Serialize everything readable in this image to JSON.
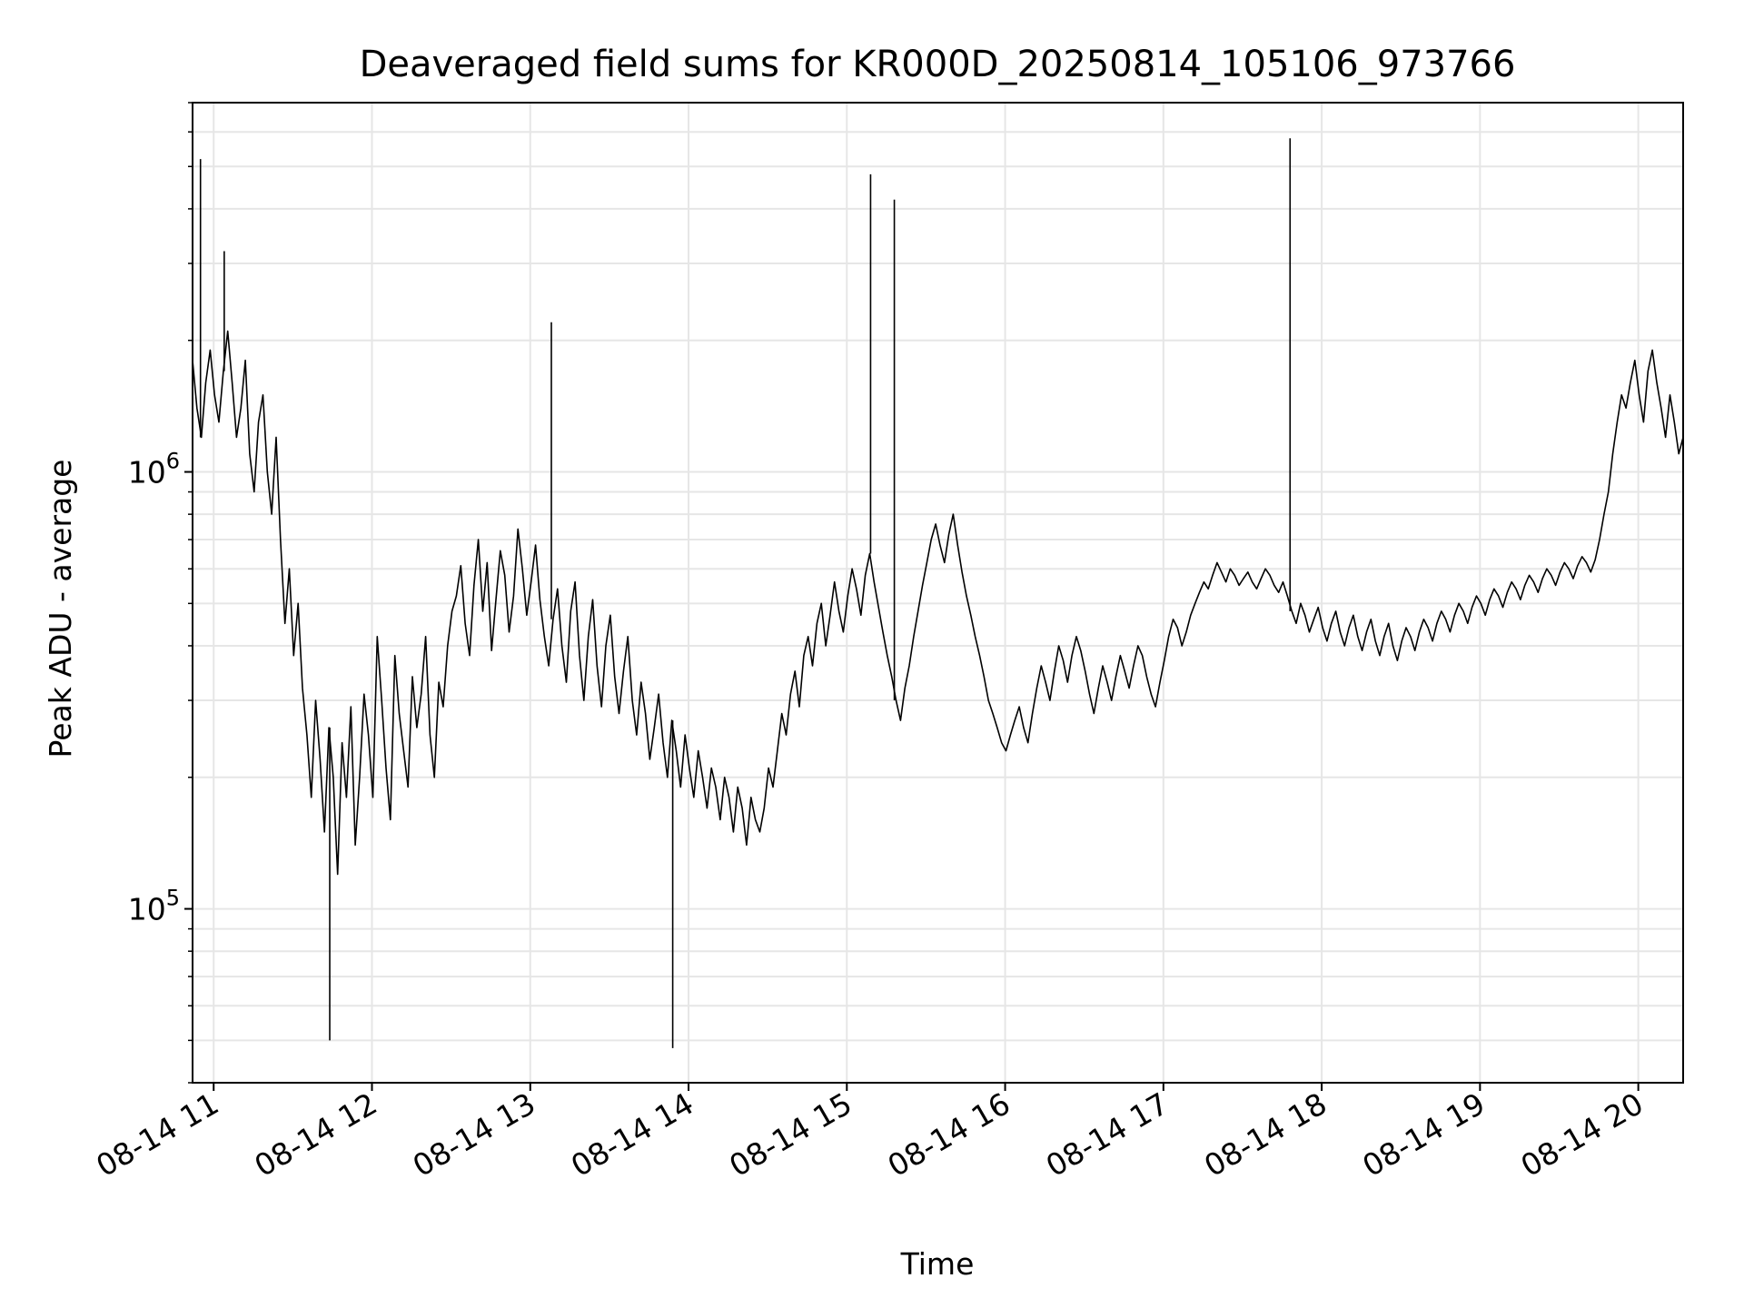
{
  "chart_data": {
    "type": "line",
    "title": "Deaveraged field sums for KR000D_20250814_105106_973766",
    "xlabel": "Time",
    "ylabel": "Peak ADU - average",
    "y_scale": "log",
    "grid": true,
    "line_color": "#000000",
    "grid_color": "#e6e6e6",
    "x_start": "08-14 10:52",
    "x_end": "08-14 20:17",
    "x_ticks": [
      "08-14 11",
      "08-14 12",
      "08-14 13",
      "08-14 14",
      "08-14 15",
      "08-14 16",
      "08-14 17",
      "08-14 18",
      "08-14 19",
      "08-14 20"
    ],
    "y_ticks": [
      {
        "base": "10",
        "exp": "5",
        "value": 100000
      },
      {
        "base": "10",
        "exp": "6",
        "value": 1000000
      }
    ],
    "ylim": [
      40000,
      7000000
    ],
    "series": [
      {
        "values": [
          1800000,
          1400000,
          1200000,
          1600000,
          1900000,
          1500000,
          1300000,
          1700000,
          2100000,
          1600000,
          1200000,
          1400000,
          1800000,
          1100000,
          900000,
          1300000,
          1500000,
          1000000,
          800000,
          1200000,
          700000,
          450000,
          600000,
          380000,
          500000,
          320000,
          250000,
          180000,
          300000,
          220000,
          150000,
          260000,
          200000,
          120000,
          240000,
          180000,
          290000,
          140000,
          200000,
          310000,
          250000,
          180000,
          420000,
          300000,
          210000,
          160000,
          380000,
          280000,
          230000,
          190000,
          340000,
          260000,
          310000,
          420000,
          250000,
          200000,
          330000,
          290000,
          400000,
          480000,
          520000,
          610000,
          450000,
          380000,
          550000,
          700000,
          480000,
          620000,
          390000,
          510000,
          660000,
          580000,
          430000,
          520000,
          740000,
          600000,
          470000,
          560000,
          680000,
          510000,
          420000,
          360000,
          460000,
          540000,
          400000,
          330000,
          480000,
          560000,
          380000,
          300000,
          420000,
          510000,
          360000,
          290000,
          400000,
          470000,
          340000,
          280000,
          350000,
          420000,
          300000,
          250000,
          330000,
          280000,
          220000,
          260000,
          310000,
          240000,
          200000,
          270000,
          230000,
          190000,
          250000,
          210000,
          180000,
          230000,
          200000,
          170000,
          210000,
          190000,
          160000,
          200000,
          180000,
          150000,
          190000,
          170000,
          140000,
          180000,
          160000,
          150000,
          170000,
          210000,
          190000,
          230000,
          280000,
          250000,
          310000,
          350000,
          290000,
          380000,
          420000,
          360000,
          450000,
          500000,
          400000,
          470000,
          560000,
          480000,
          430000,
          520000,
          600000,
          540000,
          470000,
          580000,
          650000,
          560000,
          490000,
          430000,
          380000,
          340000,
          300000,
          270000,
          320000,
          360000,
          420000,
          480000,
          550000,
          620000,
          700000,
          760000,
          680000,
          620000,
          720000,
          800000,
          680000,
          590000,
          520000,
          470000,
          420000,
          380000,
          340000,
          300000,
          280000,
          260000,
          240000,
          230000,
          250000,
          270000,
          290000,
          260000,
          240000,
          280000,
          320000,
          360000,
          330000,
          300000,
          350000,
          400000,
          370000,
          330000,
          380000,
          420000,
          390000,
          350000,
          310000,
          280000,
          320000,
          360000,
          330000,
          300000,
          340000,
          380000,
          350000,
          320000,
          360000,
          400000,
          380000,
          340000,
          310000,
          290000,
          330000,
          370000,
          420000,
          460000,
          440000,
          400000,
          430000,
          470000,
          500000,
          530000,
          560000,
          540000,
          580000,
          620000,
          590000,
          560000,
          600000,
          580000,
          550000,
          570000,
          590000,
          560000,
          540000,
          570000,
          600000,
          580000,
          550000,
          530000,
          560000,
          520000,
          480000,
          450000,
          500000,
          470000,
          430000,
          460000,
          490000,
          440000,
          410000,
          450000,
          480000,
          430000,
          400000,
          440000,
          470000,
          420000,
          390000,
          430000,
          460000,
          410000,
          380000,
          420000,
          450000,
          400000,
          370000,
          410000,
          440000,
          420000,
          390000,
          430000,
          460000,
          440000,
          410000,
          450000,
          480000,
          460000,
          430000,
          470000,
          500000,
          480000,
          450000,
          490000,
          520000,
          500000,
          470000,
          510000,
          540000,
          520000,
          490000,
          530000,
          560000,
          540000,
          510000,
          550000,
          580000,
          560000,
          530000,
          570000,
          600000,
          580000,
          550000,
          590000,
          620000,
          600000,
          570000,
          610000,
          640000,
          620000,
          590000,
          630000,
          700000,
          800000,
          900000,
          1100000,
          1300000,
          1500000,
          1400000,
          1600000,
          1800000,
          1500000,
          1300000,
          1700000,
          1900000,
          1600000,
          1400000,
          1200000,
          1500000,
          1300000,
          1100000,
          1200000
        ],
        "spikes": [
          {
            "t": "08-14 10:55",
            "value": 5200000
          },
          {
            "t": "08-14 11:04",
            "value": 3200000
          },
          {
            "t": "08-14 11:44",
            "value": 50000
          },
          {
            "t": "08-14 13:08",
            "value": 2200000
          },
          {
            "t": "08-14 13:54",
            "value": 48000
          },
          {
            "t": "08-14 15:09",
            "value": 4800000
          },
          {
            "t": "08-14 15:18",
            "value": 4200000
          },
          {
            "t": "08-14 17:48",
            "value": 5800000
          }
        ]
      }
    ]
  }
}
